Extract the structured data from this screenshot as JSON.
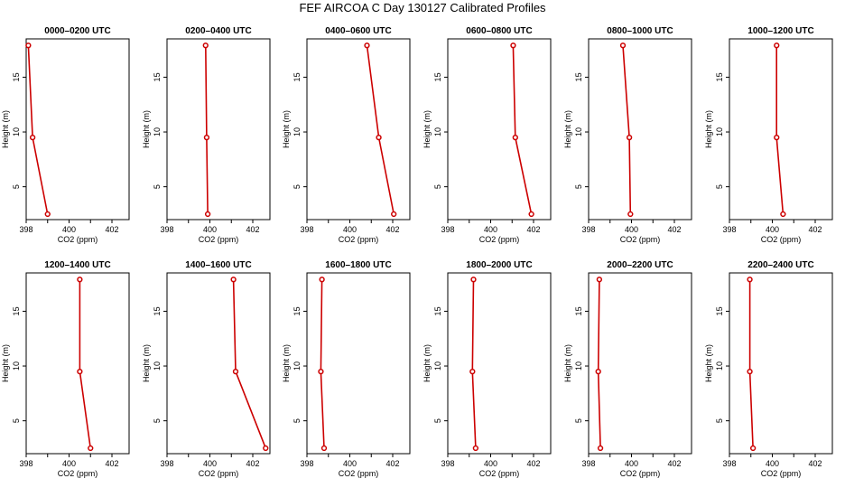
{
  "chart_data": {
    "type": "line",
    "title": "FEF  AIRCOA C  Day 130127  Calibrated Profiles",
    "xlabel": "CO2 (ppm)",
    "ylabel": "Height (m)",
    "xlim": [
      398,
      402.8
    ],
    "ylim": [
      2,
      18.5
    ],
    "xticks": [
      "398",
      "400",
      "402"
    ],
    "yticks": [
      "5",
      "10",
      "15"
    ],
    "line_color": "#cc0000",
    "heights": [
      17.9,
      9.5,
      2.5
    ],
    "panels": [
      {
        "title": "0000–0200 UTC",
        "values": [
          398.1,
          398.3,
          399.0
        ]
      },
      {
        "title": "0200–0400 UTC",
        "values": [
          399.8,
          399.85,
          399.9
        ]
      },
      {
        "title": "0400–0600 UTC",
        "values": [
          400.8,
          401.35,
          402.05
        ]
      },
      {
        "title": "0600–0800 UTC",
        "values": [
          401.05,
          401.15,
          401.9
        ]
      },
      {
        "title": "0800–1000 UTC",
        "values": [
          399.6,
          399.9,
          399.95
        ]
      },
      {
        "title": "1000–1200 UTC",
        "values": [
          400.2,
          400.2,
          400.5
        ]
      },
      {
        "title": "1200–1400 UTC",
        "values": [
          400.5,
          400.5,
          401.0
        ]
      },
      {
        "title": "1400–1600 UTC",
        "values": [
          401.1,
          401.2,
          402.6
        ]
      },
      {
        "title": "1600–1800 UTC",
        "values": [
          398.7,
          398.65,
          398.8
        ]
      },
      {
        "title": "1800–2000 UTC",
        "values": [
          399.2,
          399.15,
          399.3
        ]
      },
      {
        "title": "2000–2200 UTC",
        "values": [
          398.5,
          398.45,
          398.55
        ]
      },
      {
        "title": "2200–2400 UTC",
        "values": [
          398.95,
          398.95,
          399.1
        ]
      }
    ]
  }
}
